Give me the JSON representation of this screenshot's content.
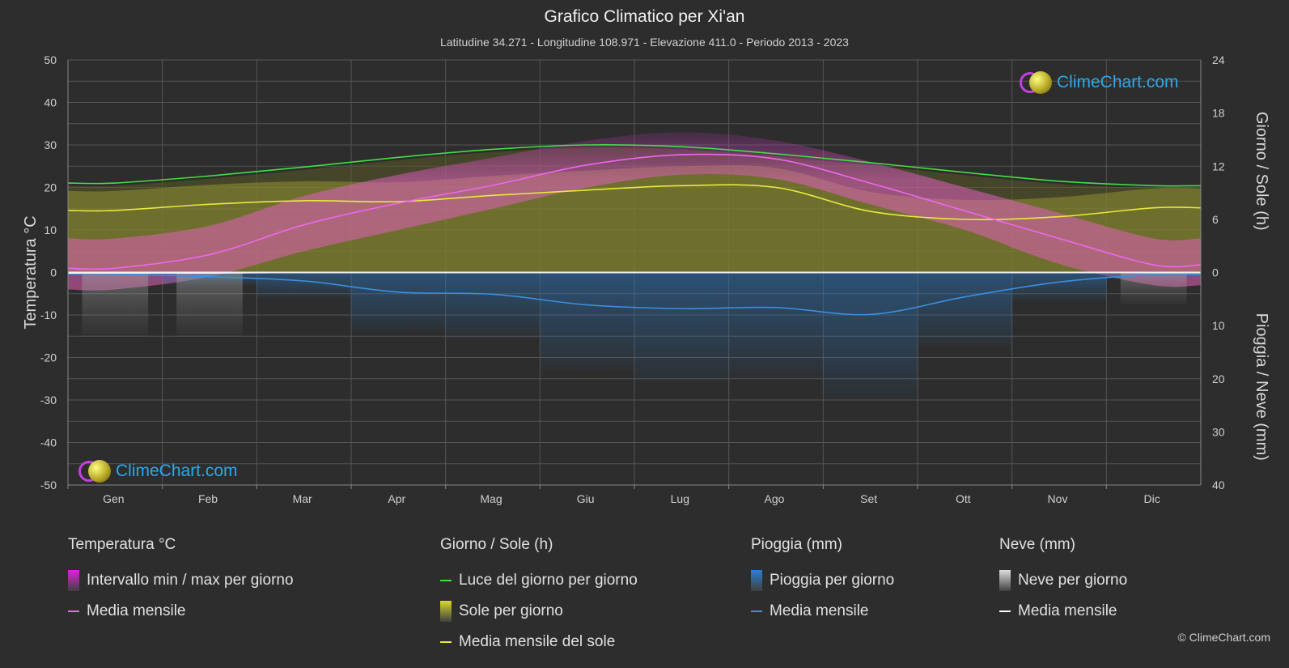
{
  "title": "Grafico Climatico per Xi'an",
  "subtitle": "Latitudine 34.271 - Longitudine 108.971 - Elevazione 411.0 - Periodo 2013 - 2023",
  "logo_text": "ClimeChart.com",
  "copyright": "© ClimeChart.com",
  "chart_data": {
    "type": "area",
    "categories": [
      "Gen",
      "Feb",
      "Mar",
      "Apr",
      "Mag",
      "Giu",
      "Lug",
      "Ago",
      "Set",
      "Ott",
      "Nov",
      "Dic"
    ],
    "left_axis": {
      "label": "Temperatura °C",
      "ticks": [
        50,
        40,
        30,
        20,
        10,
        0,
        -10,
        -20,
        -30,
        -40,
        -50
      ],
      "range": [
        -50,
        50
      ]
    },
    "right_axis_top": {
      "label": "Giorno / Sole (h)",
      "ticks": [
        24,
        18,
        12,
        6,
        0
      ],
      "range": [
        0,
        24
      ]
    },
    "right_axis_bottom": {
      "label": "Pioggia / Neve (mm)",
      "ticks": [
        10,
        20,
        30,
        40
      ],
      "range": [
        0,
        40
      ]
    },
    "grid": true,
    "series": [
      {
        "name": "Media mensile",
        "group": "Temperatura °C",
        "unit": "°C",
        "color": "#ee66ee",
        "values": [
          1.0,
          4.2,
          11.2,
          16.3,
          20.5,
          25.3,
          27.7,
          26.7,
          21.0,
          14.5,
          8.0,
          1.8
        ]
      },
      {
        "name": "Luce del giorno per giorno",
        "group": "Giorno / Sole (h)",
        "unit": "h",
        "color": "#44dd44",
        "values": [
          10.1,
          10.9,
          11.9,
          13.0,
          13.9,
          14.4,
          14.2,
          13.4,
          12.4,
          11.3,
          10.3,
          9.8
        ]
      },
      {
        "name": "Media mensile del sole",
        "group": "Giorno / Sole (h)",
        "unit": "h",
        "color": "#e8e840",
        "values": [
          7.0,
          7.7,
          8.1,
          8.0,
          8.7,
          9.3,
          9.8,
          9.6,
          6.9,
          6.0,
          6.3,
          7.3
        ]
      },
      {
        "name": "Media mensile",
        "group": "Pioggia (mm)",
        "unit": "mm",
        "color": "#3b8ee0",
        "values": [
          0.3,
          0.8,
          1.6,
          3.7,
          4.1,
          6.1,
          6.8,
          6.6,
          7.9,
          4.6,
          1.8,
          0.4
        ]
      },
      {
        "name": "Media mensile",
        "group": "Neve (mm)",
        "unit": "mm",
        "color": "#ffffff",
        "values": [
          0.1,
          0.1,
          0,
          0,
          0,
          0,
          0,
          0,
          0,
          0,
          0,
          0.05
        ]
      }
    ],
    "temp_range_band": {
      "name": "Intervallo min / max per giorno",
      "min": [
        -4,
        -1,
        5,
        10,
        15,
        20,
        23,
        22,
        16,
        10,
        2,
        -3
      ],
      "max": [
        8,
        11,
        18,
        23,
        27,
        31,
        33,
        31,
        26,
        20,
        14,
        8
      ]
    }
  },
  "legend": [
    {
      "heading": "Temperatura °C",
      "items": [
        {
          "label": "Intervallo min / max per giorno",
          "kind": "box",
          "color": "#e020e0"
        },
        {
          "label": "Media mensile",
          "kind": "line",
          "color": "#ee66ee"
        }
      ]
    },
    {
      "heading": "Giorno / Sole (h)",
      "items": [
        {
          "label": "Luce del giorno per giorno",
          "kind": "line",
          "color": "#44dd44"
        },
        {
          "label": "Sole per giorno",
          "kind": "box",
          "color": "#d8d830"
        },
        {
          "label": "Media mensile del sole",
          "kind": "line",
          "color": "#e8e840"
        }
      ]
    },
    {
      "heading": "Pioggia (mm)",
      "items": [
        {
          "label": "Pioggia per giorno",
          "kind": "box",
          "color": "#2a7fd0"
        },
        {
          "label": "Media mensile",
          "kind": "line",
          "color": "#3b8ee0"
        }
      ]
    },
    {
      "heading": "Neve (mm)",
      "items": [
        {
          "label": "Neve per giorno",
          "kind": "box",
          "color": "#dddddd"
        },
        {
          "label": "Media mensile",
          "kind": "line",
          "color": "#ffffff"
        }
      ]
    }
  ]
}
